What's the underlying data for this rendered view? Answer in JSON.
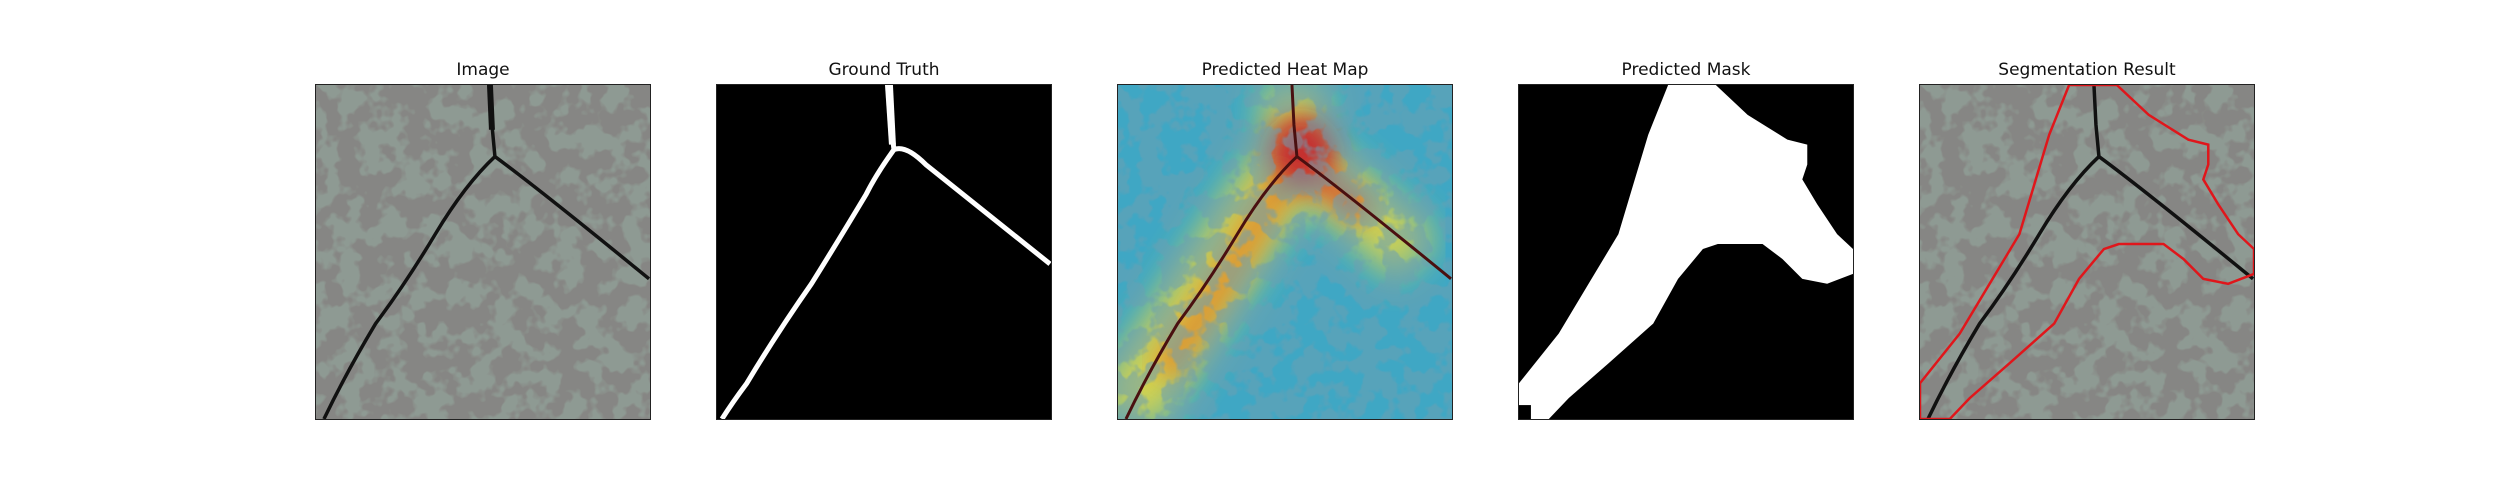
{
  "figure": {
    "panels": [
      {
        "title": "Image",
        "view": "image"
      },
      {
        "title": "Ground Truth",
        "view": "ground-truth"
      },
      {
        "title": "Predicted Heat Map",
        "view": "heat-map"
      },
      {
        "title": "Predicted Mask",
        "view": "mask"
      },
      {
        "title": "Segmentation Result",
        "view": "overlay"
      }
    ]
  },
  "colors": {
    "surface": "#8e9a93",
    "spots": "#3d3d3b",
    "crack": "#111111",
    "mask_white": "#ffffff",
    "mask_black": "#000000",
    "contour_red": "#e0161b",
    "heat_low": "#3aa3c7",
    "heat_mid": "#f2d93b",
    "heat_high": "#c4162a"
  }
}
